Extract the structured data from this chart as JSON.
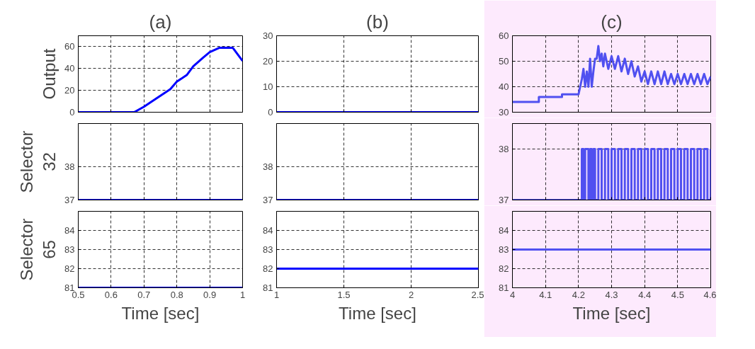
{
  "chart_data": [
    {
      "type": "line",
      "title": "(a)",
      "ylabel": "Output",
      "xlim": [
        0.5,
        1
      ],
      "xticks": [
        0.5,
        0.6,
        0.7,
        0.8,
        0.9,
        1
      ],
      "ylim": [
        0,
        70
      ],
      "yticks": [
        0,
        20,
        40,
        60
      ],
      "grid": true,
      "tick_labels": "y",
      "color": "#0000ff",
      "x": [
        0.5,
        0.67,
        0.7,
        0.72,
        0.75,
        0.78,
        0.8,
        0.83,
        0.85,
        0.88,
        0.9,
        0.93,
        0.97,
        1.0
      ],
      "values": [
        0,
        0,
        5,
        9,
        15,
        21,
        28,
        34,
        42,
        50,
        55,
        59,
        59,
        47
      ]
    },
    {
      "type": "line",
      "title": "(b)",
      "xlim": [
        1,
        2.5
      ],
      "xticks": [
        1,
        1.5,
        2,
        2.5
      ],
      "ylim": [
        0,
        30
      ],
      "yticks": [
        0,
        10,
        20,
        30
      ],
      "grid": true,
      "tick_labels": "y",
      "color": "#0000ff",
      "x": [
        1,
        2.5
      ],
      "values": [
        0,
        0
      ]
    },
    {
      "type": "line",
      "title": "(c)",
      "xlim": [
        4,
        4.6
      ],
      "xticks": [
        4,
        4.1,
        4.2,
        4.3,
        4.4,
        4.5,
        4.6
      ],
      "ylim": [
        30,
        60
      ],
      "yticks": [
        30,
        40,
        50,
        60
      ],
      "grid": true,
      "tick_labels": "y",
      "color": "#5050f0",
      "x": [
        4.0,
        4.08,
        4.08,
        4.15,
        4.15,
        4.2,
        4.21,
        4.215,
        4.22,
        4.225,
        4.23,
        4.235,
        4.24,
        4.245,
        4.25,
        4.255,
        4.26,
        4.265,
        4.27,
        4.275,
        4.28,
        4.29,
        4.3,
        4.31,
        4.32,
        4.33,
        4.34,
        4.35,
        4.36,
        4.37,
        4.38,
        4.39,
        4.4,
        4.41,
        4.42,
        4.43,
        4.44,
        4.45,
        4.46,
        4.47,
        4.48,
        4.49,
        4.5,
        4.51,
        4.52,
        4.53,
        4.54,
        4.55,
        4.56,
        4.57,
        4.58,
        4.59,
        4.6
      ],
      "values": [
        34,
        34,
        36,
        36,
        37,
        37,
        43,
        47,
        40,
        46,
        40,
        51,
        40,
        46,
        51,
        51,
        56,
        50,
        53,
        48,
        53,
        47,
        52,
        47,
        52,
        46,
        51,
        45,
        50,
        44,
        48,
        42,
        46,
        41,
        46,
        41,
        46,
        41,
        46,
        41,
        45,
        41,
        45,
        41,
        45,
        41,
        45,
        41,
        45,
        41,
        45,
        41,
        44
      ]
    },
    {
      "type": "step",
      "ylabel": "Selector 32",
      "xlim": [
        0.5,
        1
      ],
      "xticks": [
        0.5,
        0.6,
        0.7,
        0.8,
        0.9,
        1
      ],
      "ylim": [
        37,
        39.3
      ],
      "yticks": [
        37,
        38
      ],
      "grid": true,
      "tick_labels": "y",
      "color": "#0000ff",
      "x": [
        0.5,
        1
      ],
      "values": [
        37,
        37
      ]
    },
    {
      "type": "step",
      "xlim": [
        1,
        2.5
      ],
      "xticks": [
        1,
        1.5,
        2,
        2.5
      ],
      "ylim": [
        37,
        39.3
      ],
      "yticks": [
        37,
        38
      ],
      "grid": true,
      "tick_labels": "y",
      "color": "#0000ff",
      "x": [
        1,
        2.5
      ],
      "values": [
        37,
        37
      ]
    },
    {
      "type": "step",
      "xlim": [
        4,
        4.6
      ],
      "xticks": [
        4,
        4.1,
        4.2,
        4.3,
        4.4,
        4.5,
        4.6
      ],
      "ylim": [
        37,
        38.5
      ],
      "yticks": [
        37,
        38
      ],
      "grid": true,
      "tick_labels": "y",
      "color": "#5050f0",
      "x": [
        4.0,
        4.21,
        4.215,
        4.22,
        4.23,
        4.235,
        4.24,
        4.245,
        4.25,
        4.26,
        4.27,
        4.28,
        4.29,
        4.3,
        4.31,
        4.32,
        4.33,
        4.34,
        4.35,
        4.36,
        4.37,
        4.38,
        4.39,
        4.4,
        4.41,
        4.42,
        4.43,
        4.44,
        4.45,
        4.46,
        4.47,
        4.48,
        4.49,
        4.5,
        4.51,
        4.52,
        4.53,
        4.54,
        4.55,
        4.56,
        4.57,
        4.58,
        4.59,
        4.6
      ],
      "values": [
        37,
        38,
        37,
        38,
        37,
        38,
        37,
        38,
        37,
        38,
        37,
        38,
        37,
        38,
        37,
        38,
        37,
        38,
        37,
        38,
        37,
        38,
        37,
        38,
        37,
        38,
        37,
        38,
        37,
        38,
        37,
        38,
        37,
        38,
        37,
        38,
        37,
        38,
        37,
        38,
        37,
        38,
        37,
        38
      ]
    },
    {
      "type": "line",
      "ylabel": "Selector 65",
      "xlabel": "Time [sec]",
      "xlim": [
        0.5,
        1
      ],
      "xticks": [
        0.5,
        0.6,
        0.7,
        0.8,
        0.9,
        1
      ],
      "ylim": [
        81,
        85
      ],
      "yticks": [
        81,
        82,
        83,
        84
      ],
      "grid": true,
      "color": "#0000ff",
      "x": [
        0.5,
        1
      ],
      "values": [
        81,
        81
      ]
    },
    {
      "type": "line",
      "xlabel": "Time [sec]",
      "xlim": [
        1,
        2.5
      ],
      "xticks": [
        1,
        1.5,
        2,
        2.5
      ],
      "ylim": [
        81,
        85
      ],
      "yticks": [
        81,
        82,
        83,
        84
      ],
      "grid": true,
      "color": "#0000ff",
      "x": [
        1,
        2.5
      ],
      "values": [
        82,
        82
      ]
    },
    {
      "type": "line",
      "xlabel": "Time [sec]",
      "xlim": [
        4,
        4.6
      ],
      "xticks": [
        4,
        4.1,
        4.2,
        4.3,
        4.4,
        4.5,
        4.6
      ],
      "ylim": [
        81,
        85
      ],
      "yticks": [
        81,
        82,
        83,
        84
      ],
      "grid": true,
      "color": "#5050f0",
      "x": [
        4.0,
        4.6
      ],
      "values": [
        83,
        83
      ]
    }
  ]
}
